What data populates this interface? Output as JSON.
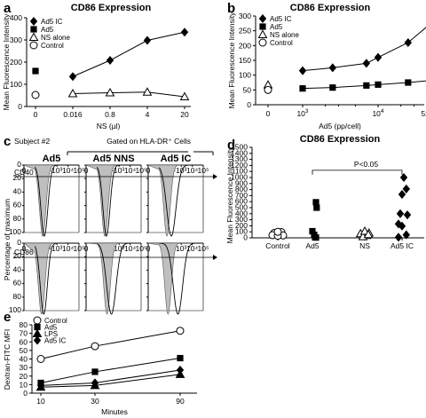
{
  "chart_data": [
    {
      "panel": "a",
      "type": "line",
      "title": "CD86 Expression",
      "xlabel": "NS (µl)",
      "ylabel": "Mean Fluorescence Intensity",
      "categories": [
        "0",
        "0.016",
        "0.8",
        "4",
        "20"
      ],
      "ylim": [
        0,
        400
      ],
      "yticks": [
        "0",
        "100",
        "200",
        "300",
        "400"
      ],
      "legend_placement": "top-left",
      "series": [
        {
          "name": "Ad5 IC",
          "marker": "diamond-filled",
          "values": [
            null,
            135,
            208,
            298,
            335
          ]
        },
        {
          "name": "Ad5",
          "marker": "square-filled",
          "values": [
            160,
            null,
            null,
            null,
            null
          ]
        },
        {
          "name": "NS alone",
          "marker": "triangle-open",
          "values": [
            null,
            58,
            62,
            65,
            44
          ]
        },
        {
          "name": "Control",
          "marker": "circle-open",
          "values": [
            52,
            null,
            null,
            null,
            null
          ]
        }
      ]
    },
    {
      "panel": "b",
      "type": "line",
      "title": "CD86 Expression",
      "xlabel": "Ad5 (pp/cell)",
      "ylabel": "Mean Fluorescence Intensity",
      "categories": [
        "0",
        "1000",
        "2500",
        "7000",
        "10000",
        "25000",
        "50000"
      ],
      "xtick_labels": [
        "0",
        "10^3",
        "10^4",
        "5x10^4"
      ],
      "ylim": [
        0,
        300
      ],
      "yticks": [
        "0",
        "50",
        "100",
        "150",
        "200",
        "250",
        "300"
      ],
      "legend_placement": "top-left",
      "series": [
        {
          "name": "Ad5 IC",
          "marker": "diamond-filled",
          "values": [
            null,
            115,
            125,
            140,
            160,
            210,
            275
          ]
        },
        {
          "name": "Ad5",
          "marker": "square-filled",
          "values": [
            null,
            55,
            58,
            65,
            68,
            75,
            82
          ]
        },
        {
          "name": "NS alone",
          "marker": "triangle-open",
          "values": [
            67,
            null,
            null,
            null,
            null,
            null,
            null
          ]
        },
        {
          "name": "Control",
          "marker": "circle-open",
          "values": [
            50,
            null,
            null,
            null,
            null,
            null,
            null
          ]
        }
      ]
    },
    {
      "panel": "c",
      "type": "histogram",
      "subtitle": "Subject #2",
      "gate_label": "Gated on HLA-DR⁺ Cells",
      "columns": [
        "Ad5",
        "Ad5 NNS",
        "Ad5 IC"
      ],
      "row_markers": [
        "CD40",
        "CD86"
      ],
      "ylabel": "Percentage of maximum",
      "ytick_labels": [
        "0",
        "20",
        "40",
        "60",
        "80",
        "100"
      ],
      "xtick_labels": [
        "0",
        "10²",
        "10³",
        "10⁴",
        "10⁵"
      ],
      "histogram_peak_decades": {
        "CD40": {
          "Ad5": [
            1.7,
            1.85
          ],
          "Ad5 NNS": [
            1.7,
            1.85
          ],
          "Ad5 IC": [
            1.7,
            2.1
          ]
        },
        "CD86": {
          "Ad5": [
            1.6,
            1.8
          ],
          "Ad5 NNS": [
            1.9,
            2.3
          ],
          "Ad5 IC": [
            1.8,
            2.7
          ]
        }
      }
    },
    {
      "panel": "d",
      "type": "scatter",
      "title": "CD86 Expression",
      "ylabel": "Mean Fluorescence Intensity",
      "categories": [
        "Control",
        "Ad5",
        "NS",
        "Ad5 IC"
      ],
      "ylim": [
        0,
        1500
      ],
      "yticks": [
        "0",
        "100",
        "200",
        "300",
        "400",
        "500",
        "600",
        "700",
        "800",
        "900",
        "1000",
        "1100",
        "1200",
        "1300",
        "1400",
        "1500"
      ],
      "annotation": "P<0.05",
      "series": [
        {
          "name": "Control",
          "marker": "circle-open",
          "points": [
            [
              -0.1,
              80
            ],
            [
              0.1,
              95
            ],
            [
              0.15,
              40
            ],
            [
              -0.15,
              45
            ],
            [
              0,
              35
            ],
            [
              0,
              100
            ]
          ]
        },
        {
          "name": "Ad5",
          "marker": "square-filled",
          "points": [
            [
              0.1,
              590
            ],
            [
              0.12,
              500
            ],
            [
              0,
              110
            ],
            [
              0.05,
              50
            ],
            [
              0.1,
              5
            ]
          ]
        },
        {
          "name": "NS",
          "marker": "triangle-open",
          "points": [
            [
              0.12,
              80
            ],
            [
              -0.12,
              70
            ],
            [
              0.05,
              40
            ],
            [
              -0.05,
              20
            ],
            [
              0,
              110
            ],
            [
              0.1,
              55
            ]
          ]
        },
        {
          "name": "Ad5 IC",
          "marker": "diamond-filled",
          "points": [
            [
              0.05,
              1000
            ],
            [
              0.12,
              810
            ],
            [
              0,
              720
            ],
            [
              -0.05,
              400
            ],
            [
              0.15,
              380
            ],
            [
              -0.1,
              230
            ],
            [
              0.12,
              50
            ],
            [
              -0.1,
              10
            ],
            [
              0,
              195
            ]
          ]
        }
      ]
    },
    {
      "panel": "e",
      "type": "line",
      "xlabel": "Minutes",
      "ylabel": "Dextran-FITC MFI",
      "categories": [
        "10",
        "30",
        "90"
      ],
      "ylim": [
        0,
        80
      ],
      "yticks": [
        "0",
        "10",
        "20",
        "30",
        "40",
        "50",
        "60",
        "70",
        "80"
      ],
      "legend_placement": "top-left",
      "series": [
        {
          "name": "Control",
          "marker": "circle-open",
          "values": [
            40,
            55,
            73
          ]
        },
        {
          "name": "Ad5",
          "marker": "square-filled",
          "values": [
            12,
            25,
            41
          ]
        },
        {
          "name": "LPS",
          "marker": "triangle-filled",
          "values": [
            7,
            9,
            22
          ]
        },
        {
          "name": "Ad5 IC",
          "marker": "diamond-filled",
          "values": [
            9,
            12,
            27
          ]
        }
      ]
    }
  ]
}
